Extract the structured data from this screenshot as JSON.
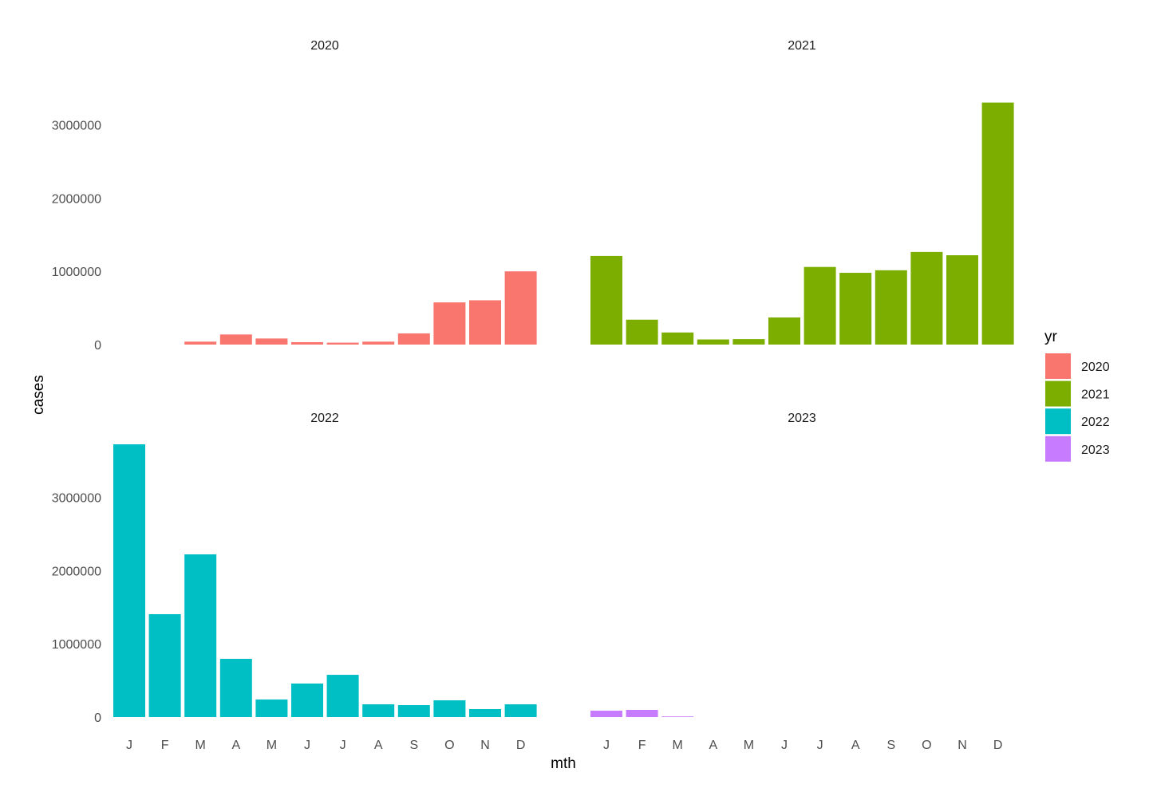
{
  "chart_data": {
    "type": "bar",
    "facet_by": "yr",
    "xlabel": "mth",
    "ylabel": "cases",
    "categories": [
      "J",
      "F",
      "M",
      "A",
      "M",
      "J",
      "J",
      "A",
      "S",
      "O",
      "N",
      "D"
    ],
    "ylim": [
      0,
      3750000
    ],
    "yticks": [
      0,
      1000000,
      2000000,
      3000000
    ],
    "ytick_labels": [
      "0",
      "1000000",
      "2000000",
      "3000000"
    ],
    "grid": false,
    "legend": {
      "title": "yr",
      "position": "right",
      "entries": [
        "2020",
        "2021",
        "2022",
        "2023"
      ]
    },
    "colors": {
      "2020": "#F8766D",
      "2021": "#7CAE00",
      "2022": "#00BFC4",
      "2023": "#C77CFF"
    },
    "panels": [
      {
        "title": "2020",
        "values": [
          0,
          0,
          40000,
          138000,
          83000,
          33000,
          26000,
          40000,
          152000,
          576000,
          605000,
          1000000
        ]
      },
      {
        "title": "2021",
        "values": [
          1210000,
          340000,
          165000,
          70000,
          75000,
          370000,
          1060000,
          980000,
          1015000,
          1265000,
          1220000,
          3305000
        ]
      },
      {
        "title": "2022",
        "values": [
          3725000,
          1405000,
          2222000,
          795000,
          240000,
          458000,
          577000,
          174000,
          163000,
          229000,
          109000,
          174000
        ]
      },
      {
        "title": "2023",
        "values": [
          87000,
          98000,
          3000,
          null,
          null,
          null,
          null,
          null,
          null,
          null,
          null,
          null
        ]
      }
    ]
  }
}
